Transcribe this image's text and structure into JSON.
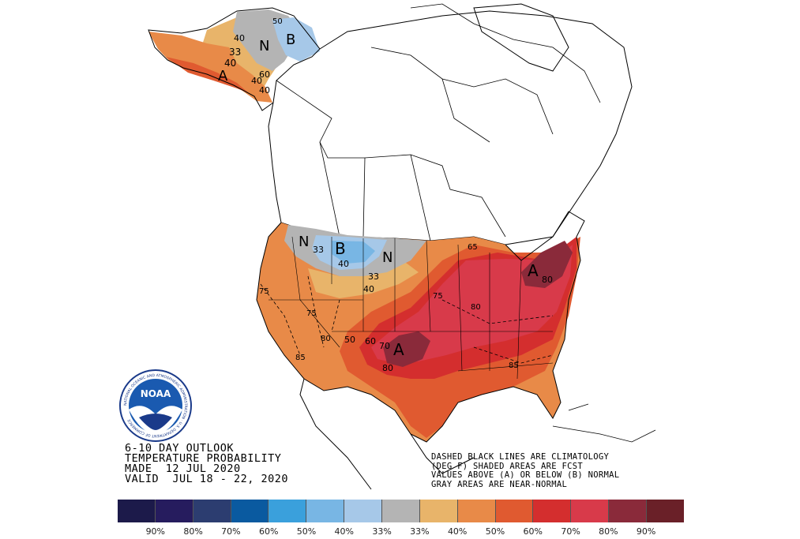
{
  "product": {
    "line1": "6-10 DAY OUTLOOK",
    "line2": "TEMPERATURE PROBABILITY",
    "line3": "MADE  12 JUL 2020",
    "line4": "VALID  JUL 18 - 22, 2020"
  },
  "notes": {
    "line1": "DASHED BLACK LINES ARE CLIMATOLOGY",
    "line2": "(DEG F) SHADED AREAS ARE FCST",
    "line3": "VALUES ABOVE (A) OR BELOW (B) NORMAL",
    "line4": "GRAY AREAS ARE NEAR-NORMAL"
  },
  "logo": {
    "name": "noaa-logo",
    "text": "NOAA",
    "ring_text": "NATIONAL OCEANIC AND ATMOSPHERIC ADMINISTRATION · U.S. DEPARTMENT OF COMMERCE"
  },
  "legend": {
    "colors": [
      "#1c1a4a",
      "#261c5e",
      "#2c3d70",
      "#0a5aa0",
      "#3aa0dc",
      "#78b6e4",
      "#a6c8e8",
      "#b4b4b4",
      "#e8b46a",
      "#e88a48",
      "#e05a30",
      "#d42e2e",
      "#d83a4a",
      "#8a2a3a",
      "#6a2028"
    ],
    "labels": [
      "90%",
      "80%",
      "70%",
      "60%",
      "50%",
      "40%",
      "33%",
      "33%",
      "40%",
      "50%",
      "60%",
      "70%",
      "80%",
      "90%"
    ]
  },
  "map_labels": {
    "alaska": [
      {
        "text": "33"
      },
      {
        "text": "40"
      },
      {
        "text": "A"
      },
      {
        "text": "N"
      },
      {
        "text": "B"
      },
      {
        "text": "60"
      },
      {
        "text": "40"
      },
      {
        "text": "40"
      },
      {
        "text": "50"
      },
      {
        "text": "40"
      }
    ],
    "conus": [
      {
        "text": "N"
      },
      {
        "text": "33"
      },
      {
        "text": "B"
      },
      {
        "text": "40"
      },
      {
        "text": "N"
      },
      {
        "text": "33"
      },
      {
        "text": "40"
      },
      {
        "text": "75"
      },
      {
        "text": "75"
      },
      {
        "text": "80"
      },
      {
        "text": "85"
      },
      {
        "text": "50"
      },
      {
        "text": "60"
      },
      {
        "text": "70"
      },
      {
        "text": "A"
      },
      {
        "text": "80"
      },
      {
        "text": "75"
      },
      {
        "text": "65"
      },
      {
        "text": "A"
      },
      {
        "text": "80"
      },
      {
        "text": "80"
      },
      {
        "text": "85"
      }
    ]
  },
  "colors": {
    "near_normal": "#b4b4b4",
    "below_33": "#a6c8e8",
    "below_40": "#78b6e4",
    "above_33": "#e8b46a",
    "above_40": "#e88a48",
    "above_50": "#e05a30",
    "above_60": "#d42e2e",
    "above_70": "#d83a4a",
    "above_80": "#8a2a3a"
  }
}
